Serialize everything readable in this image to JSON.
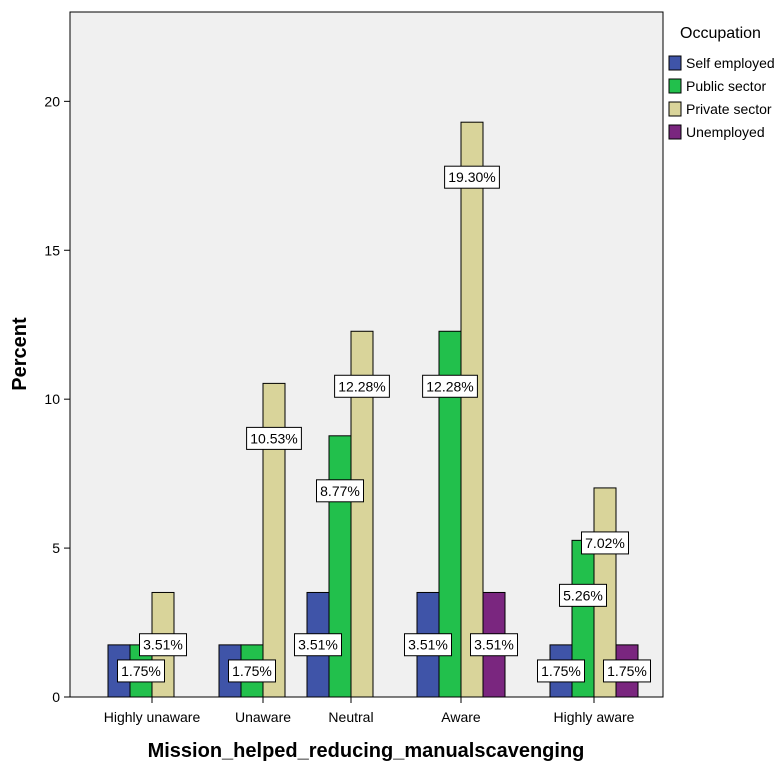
{
  "chart_data": {
    "type": "bar",
    "xlabel": "Mission_helped_reducing_manualscavenging",
    "ylabel": "Percent",
    "ylim": [
      0,
      23
    ],
    "yticks": [
      0,
      5,
      10,
      15,
      20
    ],
    "grid": false,
    "legend_position": "right",
    "legend_title": "Occupation",
    "categories": [
      "Highly unaware",
      "Unaware",
      "Neutral",
      "Aware",
      "Highly aware"
    ],
    "series": [
      {
        "name": "Self employed",
        "color": "#3f54a8",
        "values": [
          1.75,
          1.75,
          3.51,
          3.51,
          1.75
        ],
        "labels": [
          "",
          "",
          "3.51%",
          "3.51%",
          "1.75%"
        ]
      },
      {
        "name": "Public sector",
        "color": "#22c04c",
        "values": [
          1.75,
          1.75,
          8.77,
          12.28,
          5.26
        ],
        "labels": [
          "1.75%",
          "1.75%",
          "8.77%",
          "12.28%",
          "5.26%"
        ]
      },
      {
        "name": "Private sector",
        "color": "#d9d49a",
        "values": [
          3.51,
          10.53,
          12.28,
          19.3,
          7.02
        ],
        "labels": [
          "3.51%",
          "10.53%",
          "12.28%",
          "19.30%",
          "7.02%"
        ]
      },
      {
        "name": "Unemployed",
        "color": "#7a267f",
        "values": [
          0,
          0,
          0,
          3.51,
          1.75
        ],
        "labels": [
          "",
          "",
          "",
          "3.51%",
          "1.75%"
        ]
      }
    ]
  }
}
